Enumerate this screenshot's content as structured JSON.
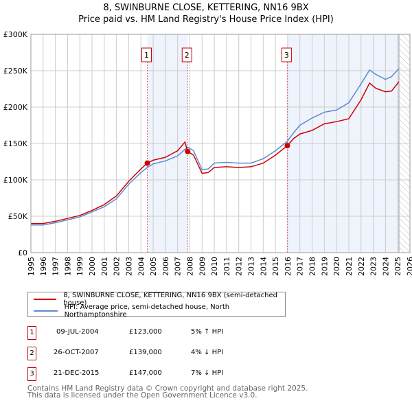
{
  "title": "8, SWINBURNE CLOSE, KETTERING, NN16 9BX",
  "subtitle": "Price paid vs. HM Land Registry's House Price Index (HPI)",
  "chart_data": {
    "type": "line",
    "title": "8, SWINBURNE CLOSE, KETTERING, NN16 9BX",
    "subtitle": "Price paid vs. HM Land Registry's House Price Index (HPI)",
    "xlim": [
      1995,
      2026
    ],
    "ylim": [
      0,
      300000
    ],
    "x_ticks": [
      "1995",
      "1996",
      "1997",
      "1998",
      "1999",
      "2000",
      "2001",
      "2002",
      "2003",
      "2004",
      "2005",
      "2006",
      "2007",
      "2008",
      "2009",
      "2010",
      "2011",
      "2012",
      "2013",
      "2014",
      "2015",
      "2016",
      "2017",
      "2018",
      "2019",
      "2020",
      "2021",
      "2022",
      "2023",
      "2024",
      "2025",
      "2026"
    ],
    "y_ticks": [
      {
        "v": 0,
        "label": "£0"
      },
      {
        "v": 50000,
        "label": "£50K"
      },
      {
        "v": 100000,
        "label": "£100K"
      },
      {
        "v": 150000,
        "label": "£150K"
      },
      {
        "v": 200000,
        "label": "£200K"
      },
      {
        "v": 250000,
        "label": "£250K"
      },
      {
        "v": 300000,
        "label": "£300K"
      }
    ],
    "grid": true,
    "series": [
      {
        "name": "8, SWINBURNE CLOSE, KETTERING, NN16 9BX (semi-detached house)",
        "color": "#cc0000",
        "x": [
          1995,
          1996,
          1997,
          1998,
          1999,
          2000,
          2001,
          2002,
          2003,
          2004,
          2004.52,
          2005,
          2006,
          2007,
          2007.6,
          2007.82,
          2008.3,
          2009,
          2009.5,
          2010,
          2011,
          2012,
          2013,
          2014,
          2015,
          2015.97,
          2016.5,
          2017,
          2018,
          2019,
          2020,
          2021,
          2022,
          2022.7,
          2023.2,
          2024,
          2024.5,
          2025.1
        ],
        "y": [
          40000,
          40000,
          43000,
          47000,
          51000,
          58000,
          66000,
          78000,
          98000,
          115000,
          123000,
          127000,
          131000,
          140000,
          152000,
          139000,
          134000,
          109000,
          110000,
          117000,
          118000,
          117000,
          118000,
          123000,
          134000,
          147000,
          157000,
          163000,
          168000,
          177000,
          180000,
          184000,
          210000,
          233000,
          226000,
          221000,
          222000,
          235000
        ]
      },
      {
        "name": "HPI: Average price, semi-detached house, North Northamptonshire",
        "color": "#5b8bd0",
        "x": [
          1995,
          1996,
          1997,
          1998,
          1999,
          2000,
          2001,
          2002,
          2003,
          2004,
          2004.52,
          2005,
          2006,
          2007,
          2007.82,
          2008.3,
          2009,
          2009.5,
          2010,
          2011,
          2012,
          2013,
          2014,
          2015,
          2015.97,
          2016.5,
          2017,
          2018,
          2019,
          2020,
          2021,
          2022,
          2022.7,
          2023.2,
          2024,
          2024.5,
          2025.1
        ],
        "y": [
          38000,
          38000,
          41000,
          45000,
          49000,
          56000,
          63000,
          74000,
          94000,
          110000,
          117000,
          122000,
          126000,
          133000,
          145000,
          140000,
          114000,
          115000,
          123000,
          124000,
          123000,
          123000,
          129000,
          140000,
          153000,
          165000,
          175000,
          185000,
          193000,
          196000,
          206000,
          232000,
          251000,
          245000,
          238000,
          242000,
          253000
        ]
      }
    ],
    "sales": [
      {
        "n": "1",
        "x": 2004.52,
        "y": 123000,
        "date": "09-JUL-2004",
        "price": "£123,000",
        "hpi": "5% ↑ HPI"
      },
      {
        "n": "2",
        "x": 2007.82,
        "y": 139000,
        "date": "26-OCT-2007",
        "price": "£139,000",
        "hpi": "4% ↓ HPI"
      },
      {
        "n": "3",
        "x": 2015.97,
        "y": 147000,
        "date": "21-DEC-2015",
        "price": "£147,000",
        "hpi": "7% ↓ HPI"
      }
    ],
    "shaded": [
      [
        2004.52,
        2007.82
      ],
      [
        2015.97,
        2025.1
      ]
    ],
    "hatched_from": 2025.1,
    "legend_position": "below"
  },
  "footer1": "Contains HM Land Registry data © Crown copyright and database right 2025.",
  "footer2": "This data is licensed under the Open Government Licence v3.0."
}
